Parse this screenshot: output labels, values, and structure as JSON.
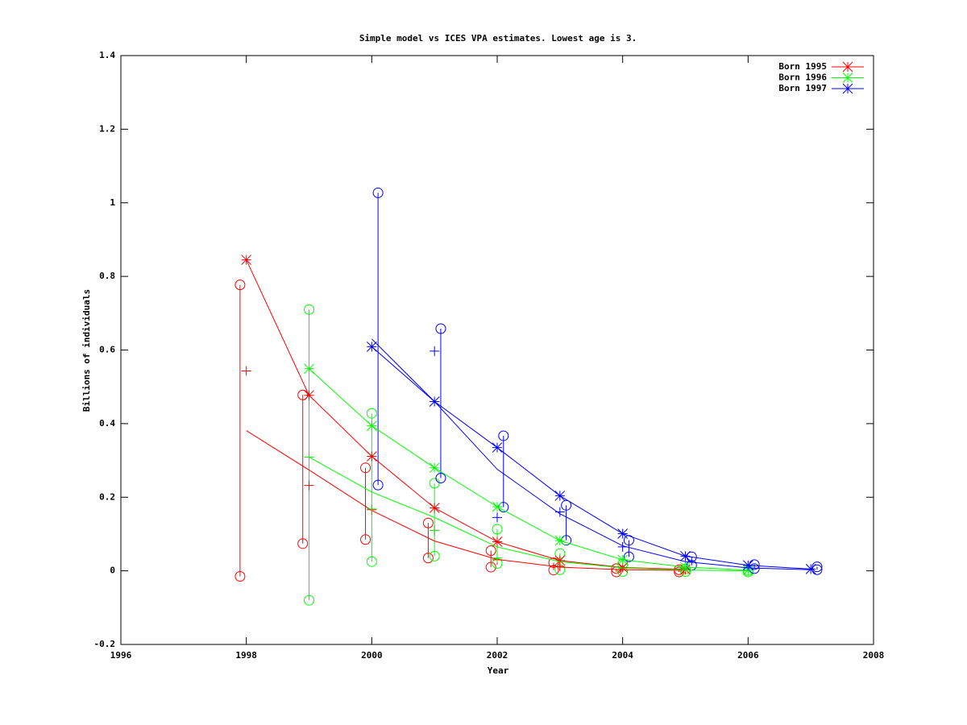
{
  "chart_data": {
    "type": "line",
    "title": "Simple model vs ICES VPA estimates. Lowest age is 3.",
    "x_label": "Year",
    "y_label": "Billions of individuals",
    "xlim": [
      1996,
      2008
    ],
    "xticks": [
      1996,
      1998,
      2000,
      2002,
      2004,
      2006,
      2008
    ],
    "ylim": [
      -0.2,
      1.4
    ],
    "yticks": [
      -0.2,
      0,
      0.2,
      0.4,
      0.6,
      0.8,
      1,
      1.2,
      1.4
    ],
    "legend": "upper right",
    "series": [
      {
        "name": "Born 1995",
        "color": "#ff0000",
        "marker": "star",
        "x": [
          1998,
          1999,
          2000,
          2001,
          2002,
          2003,
          2004,
          2005
        ],
        "values": [
          0.845,
          0.477,
          0.311,
          0.171,
          0.079,
          0.028,
          0.009,
          0.004
        ]
      },
      {
        "name": "Born 1996",
        "color": "#00ff00",
        "marker": "star",
        "x": [
          1999,
          2000,
          2001,
          2002,
          2003,
          2004,
          2005,
          2006
        ],
        "values": [
          0.549,
          0.394,
          0.28,
          0.174,
          0.082,
          0.03,
          0.01,
          0.002
        ]
      },
      {
        "name": "Born 1997",
        "color": "#0000ff",
        "marker": "star",
        "x": [
          2000,
          2001,
          2002,
          2003,
          2004,
          2005,
          2006,
          2007
        ],
        "values": [
          0.609,
          0.46,
          0.335,
          0.204,
          0.101,
          0.04,
          0.015,
          0.005
        ]
      },
      {
        "color": "#ff0000",
        "x": [
          1998,
          1999,
          2000,
          2001,
          2002,
          2003,
          2004,
          2005
        ],
        "values": [
          0.381,
          0.274,
          0.164,
          0.081,
          0.031,
          0.01,
          0.003,
          0.001
        ]
      },
      {
        "color": "#00ff00",
        "x": [
          1999,
          2000,
          2001,
          2002,
          2003,
          2004,
          2005,
          2006
        ],
        "values": [
          0.309,
          0.214,
          0.145,
          0.065,
          0.025,
          0.008,
          0.002,
          0
        ]
      },
      {
        "color": "#0000ff",
        "x": [
          2000,
          2001,
          2002,
          2003,
          2004,
          2005,
          2006,
          2007
        ],
        "values": [
          0.63,
          0.46,
          0.276,
          0.155,
          0.068,
          0.025,
          0.008,
          0.003
        ]
      },
      {
        "color": "#ff0000",
        "marker": "plus",
        "line": false,
        "x": [
          1998,
          1999,
          2000,
          2001,
          2002,
          2003
        ],
        "values": [
          0.543,
          0.232,
          0.166,
          0.11,
          0.03,
          0.012
        ]
      },
      {
        "color": "#00ff00",
        "marker": "plus",
        "line": false,
        "x": [
          1999,
          2000,
          2001,
          2002
        ],
        "values": [
          0.309,
          0.168,
          0.11,
          0.035
        ]
      },
      {
        "color": "#0000ff",
        "marker": "plus",
        "line": false,
        "x": [
          2001,
          2002,
          2003,
          2004
        ],
        "values": [
          0.597,
          0.145,
          0.16,
          0.065
        ]
      }
    ],
    "ranges": [
      {
        "color": "#ff0000",
        "marker": "circle",
        "x": [
          1997.9,
          1998.9,
          1999.9,
          2000.9,
          2001.9,
          2002.9,
          2003.9,
          2004.9
        ],
        "high": [
          0.777,
          0.478,
          0.28,
          0.13,
          0.055,
          0.022,
          0.006,
          0.003
        ],
        "low": [
          -0.015,
          0.074,
          0.085,
          0.035,
          0.01,
          0.002,
          -0.003,
          -0.003
        ]
      },
      {
        "color": "#00ff00",
        "marker": "circle",
        "x": [
          1999,
          2000,
          2001,
          2002,
          2003,
          2004,
          2005,
          2006
        ],
        "high": [
          0.71,
          0.428,
          0.238,
          0.113,
          0.047,
          0.018,
          0.005,
          0.001
        ],
        "low": [
          -0.08,
          0.025,
          0.04,
          0.02,
          0.003,
          -0.002,
          -0.002,
          -0.003
        ]
      },
      {
        "color": "#0000ff",
        "marker": "circle",
        "x": [
          2000.1,
          2001.1,
          2002.1,
          2003.1,
          2004.1,
          2005.1,
          2006.1,
          2007.1
        ],
        "high": [
          1.027,
          0.658,
          0.367,
          0.178,
          0.083,
          0.038,
          0.017,
          0.011
        ],
        "low": [
          0.233,
          0.252,
          0.173,
          0.083,
          0.038,
          0.015,
          0.006,
          0.003
        ]
      }
    ]
  }
}
